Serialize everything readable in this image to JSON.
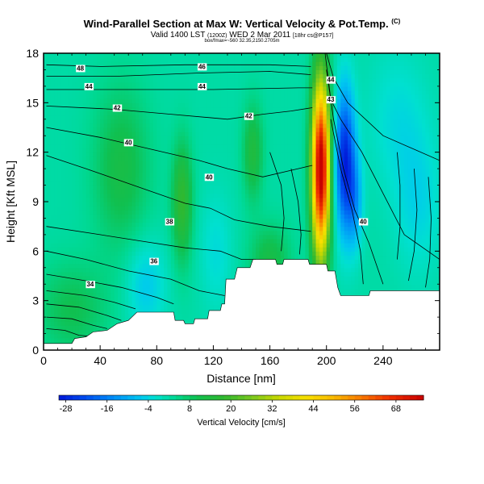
{
  "title": {
    "main": "Wind-Parallel Section at Max W: Vertical Velocity & Pot.Temp.",
    "corner_mark": "(C)",
    "valid": "Valid 1400 LST",
    "valid_small": "(1200Z)",
    "date": "WED 2 Mar 2011",
    "date_small": "[18hr cs@P157]",
    "line3": "box/fmax=~560 32.35,2150.2705m"
  },
  "chart_data": {
    "type": "heatmap",
    "xlabel": "Distance [nm]",
    "ylabel": "Height [Kft MSL]",
    "xlim": [
      0,
      280
    ],
    "ylim": [
      0,
      18
    ],
    "x_ticks": [
      0,
      40,
      80,
      120,
      160,
      200,
      240
    ],
    "y_ticks": [
      0,
      3,
      6,
      9,
      12,
      15,
      18
    ],
    "grid": false,
    "colorbar": {
      "label": "Vertical Velocity [cm/s]",
      "tick_labels": [
        "-28",
        "-16",
        "-4",
        "8",
        "20",
        "32",
        "44",
        "56",
        "68"
      ],
      "tick_values": [
        -28,
        -16,
        -4,
        8,
        20,
        32,
        44,
        56,
        68
      ],
      "min": -30,
      "max": 76,
      "stops": [
        {
          "v": -30,
          "c": "#0018d8"
        },
        {
          "v": -22,
          "c": "#0050f0"
        },
        {
          "v": -14,
          "c": "#0090f8"
        },
        {
          "v": -6,
          "c": "#00c8f0"
        },
        {
          "v": -2,
          "c": "#00e0d0"
        },
        {
          "v": 4,
          "c": "#00d890"
        },
        {
          "v": 10,
          "c": "#10c050"
        },
        {
          "v": 18,
          "c": "#30b830"
        },
        {
          "v": 26,
          "c": "#78c820"
        },
        {
          "v": 34,
          "c": "#c8d800"
        },
        {
          "v": 42,
          "c": "#f8e000"
        },
        {
          "v": 50,
          "c": "#f8b800"
        },
        {
          "v": 58,
          "c": "#f87800"
        },
        {
          "v": 66,
          "c": "#f03000"
        },
        {
          "v": 76,
          "c": "#c80000"
        }
      ]
    },
    "terrain": [
      [
        0,
        0.4
      ],
      [
        20,
        0.4
      ],
      [
        22,
        0.7
      ],
      [
        30,
        0.8
      ],
      [
        35,
        1.1
      ],
      [
        45,
        1.2
      ],
      [
        52,
        1.6
      ],
      [
        60,
        1.8
      ],
      [
        66,
        2.3
      ],
      [
        92,
        2.3
      ],
      [
        93,
        1.8
      ],
      [
        99,
        1.8
      ],
      [
        100,
        1.6
      ],
      [
        106,
        1.6
      ],
      [
        107,
        1.9
      ],
      [
        116,
        1.9
      ],
      [
        117,
        2.4
      ],
      [
        125,
        2.4
      ],
      [
        126,
        2.8
      ],
      [
        128,
        2.8
      ],
      [
        129,
        4.3
      ],
      [
        135,
        4.3
      ],
      [
        137,
        5.0
      ],
      [
        146,
        5.0
      ],
      [
        148,
        5.5
      ],
      [
        164,
        5.5
      ],
      [
        165,
        5.2
      ],
      [
        169,
        5.2
      ],
      [
        170,
        5.5
      ],
      [
        187,
        5.5
      ],
      [
        188,
        5.2
      ],
      [
        200,
        5.2
      ],
      [
        201,
        4.8
      ],
      [
        206,
        4.8
      ],
      [
        208,
        3.8
      ],
      [
        210,
        3.3
      ],
      [
        230,
        3.3
      ],
      [
        231,
        3.6
      ],
      [
        280,
        3.6
      ]
    ],
    "w_features": [
      {
        "x": 196,
        "y": 11,
        "sx": 4.5,
        "sy": 3.8,
        "amp": 78
      },
      {
        "x": 213,
        "y": 11.5,
        "sx": 5,
        "sy": 3,
        "amp": -30
      },
      {
        "x": 220,
        "y": 9,
        "sx": 4,
        "sy": 2,
        "amp": -12
      },
      {
        "x": 98,
        "y": 9,
        "sx": 5,
        "sy": 2.5,
        "amp": 16
      },
      {
        "x": 148,
        "y": 12,
        "sx": 5,
        "sy": 2,
        "amp": 12
      },
      {
        "x": 55,
        "y": 11,
        "sx": 14,
        "sy": 3.5,
        "amp": 10
      },
      {
        "x": 20,
        "y": 2.5,
        "sx": 18,
        "sy": 2,
        "amp": 8
      },
      {
        "x": 160,
        "y": 5.5,
        "sx": 10,
        "sy": 1.5,
        "amp": 10
      },
      {
        "x": 250,
        "y": 14,
        "sx": 15,
        "sy": 3,
        "amp": -5
      },
      {
        "x": 265,
        "y": 9,
        "sx": 12,
        "sy": 3,
        "amp": -6
      },
      {
        "x": 72,
        "y": 4,
        "sx": 10,
        "sy": 2,
        "amp": -8
      },
      {
        "x": 122,
        "y": 6,
        "sx": 8,
        "sy": 2.5,
        "amp": -5
      }
    ],
    "w_base": 2,
    "theta_contours": [
      {
        "value": 48,
        "label": "48",
        "points": [
          [
            2,
            17.3
          ],
          [
            40,
            17.2
          ],
          [
            100,
            17.3
          ],
          [
            160,
            17.3
          ],
          [
            189,
            17.2
          ]
        ]
      },
      {
        "value": 46,
        "label": "46",
        "points": [
          [
            2,
            16.6
          ],
          [
            50,
            16.6
          ],
          [
            110,
            16.8
          ],
          [
            160,
            16.9
          ],
          [
            189,
            16.7
          ]
        ]
      },
      {
        "value": 44,
        "label": "44",
        "points": [
          [
            2,
            15.8
          ],
          [
            60,
            15.8
          ],
          [
            120,
            15.8
          ],
          [
            180,
            15.9
          ],
          [
            190,
            15.9
          ]
        ]
      },
      {
        "value": 42,
        "label": "42",
        "points": [
          [
            2,
            14.8
          ],
          [
            50,
            14.6
          ],
          [
            90,
            14.3
          ],
          [
            130,
            14.0
          ],
          [
            155,
            14.3
          ],
          [
            175,
            14.5
          ],
          [
            190,
            14.7
          ]
        ]
      },
      {
        "value": 40,
        "label": "40",
        "points": [
          [
            2,
            13.5
          ],
          [
            40,
            12.9
          ],
          [
            80,
            12.1
          ],
          [
            110,
            11.5
          ],
          [
            130,
            11.0
          ],
          [
            155,
            10.5
          ],
          [
            180,
            11
          ],
          [
            190,
            11.2
          ]
        ]
      },
      {
        "value": 38,
        "label": "38",
        "points": [
          [
            2,
            11.8
          ],
          [
            30,
            11.0
          ],
          [
            70,
            9.8
          ],
          [
            100,
            8.9
          ],
          [
            118,
            8.6
          ],
          [
            135,
            7.9
          ],
          [
            160,
            7.5
          ],
          [
            180,
            7.3
          ],
          [
            189,
            7.2
          ]
        ]
      },
      {
        "value": 36,
        "label": "36",
        "points": [
          [
            2,
            7.5
          ],
          [
            40,
            7.0
          ],
          [
            70,
            6.6
          ],
          [
            100,
            6.2
          ],
          [
            125,
            6.0
          ],
          [
            140,
            5.5
          ],
          [
            150,
            5.5
          ]
        ]
      },
      {
        "value": 34,
        "label": "34",
        "points": [
          [
            2,
            6.0
          ],
          [
            30,
            5.5
          ],
          [
            60,
            4.8
          ],
          [
            90,
            4.3
          ],
          [
            110,
            3.6
          ],
          [
            128,
            3.3
          ]
        ]
      },
      {
        "value": 33,
        "label": "",
        "points": [
          [
            2,
            4.6
          ],
          [
            30,
            4.2
          ],
          [
            55,
            3.8
          ],
          [
            80,
            3.2
          ],
          [
            92,
            2.8
          ]
        ]
      },
      {
        "value": 32,
        "label": "",
        "points": [
          [
            2,
            3.6
          ],
          [
            30,
            3.3
          ],
          [
            50,
            2.9
          ],
          [
            65,
            2.5
          ]
        ]
      },
      {
        "value": 31,
        "label": "",
        "points": [
          [
            2,
            2.8
          ],
          [
            25,
            2.6
          ],
          [
            45,
            2.1
          ],
          [
            55,
            1.8
          ]
        ]
      },
      {
        "value": 30,
        "label": "",
        "points": [
          [
            2,
            2.0
          ],
          [
            20,
            1.9
          ],
          [
            35,
            1.5
          ],
          [
            45,
            1.3
          ]
        ]
      },
      {
        "value": 29,
        "label": "",
        "points": [
          [
            2,
            1.3
          ],
          [
            15,
            1.2
          ],
          [
            25,
            0.9
          ],
          [
            32,
            0.85
          ]
        ]
      },
      {
        "value": 44,
        "label": "44",
        "points": [
          [
            200,
            18
          ],
          [
            205,
            16.5
          ],
          [
            215,
            15.0
          ],
          [
            240,
            13.0
          ],
          [
            280,
            11.5
          ]
        ]
      },
      {
        "value": 43,
        "label": "43",
        "points": [
          [
            199,
            18
          ],
          [
            203,
            15.2
          ],
          [
            210,
            14.0
          ],
          [
            225,
            12.0
          ],
          [
            240,
            9.5
          ],
          [
            255,
            7.0
          ],
          [
            280,
            5.5
          ]
        ]
      },
      {
        "value": 42,
        "label": "",
        "points": [
          [
            200,
            17
          ],
          [
            205,
            14.0
          ],
          [
            212,
            11.0
          ],
          [
            220,
            8.5
          ],
          [
            230,
            6.5
          ],
          [
            240,
            4.0
          ]
        ]
      },
      {
        "value": 41,
        "label": "",
        "points": [
          [
            203,
            14
          ],
          [
            210,
            11
          ],
          [
            218,
            8.5
          ],
          [
            224,
            6.0
          ],
          [
            226,
            4.0
          ]
        ]
      },
      {
        "value": 40,
        "label": "40",
        "points": [
          [
            250,
            12
          ],
          [
            252,
            10
          ],
          [
            252,
            7.5
          ],
          [
            250,
            5.5
          ]
        ]
      },
      {
        "value": 39,
        "label": "",
        "points": [
          [
            262,
            11
          ],
          [
            264,
            8.5
          ],
          [
            262,
            6.0
          ],
          [
            258,
            4.2
          ]
        ]
      },
      {
        "value": 38,
        "label": "",
        "points": [
          [
            272,
            10.5
          ],
          [
            274,
            8
          ],
          [
            273,
            5.5
          ],
          [
            270,
            3.8
          ]
        ]
      },
      {
        "value": 37,
        "label": "",
        "points": [
          [
            160,
            12
          ],
          [
            168,
            10
          ],
          [
            170,
            8
          ],
          [
            168,
            6
          ]
        ]
      },
      {
        "value": 37,
        "label": "",
        "points": [
          [
            175,
            11
          ],
          [
            180,
            9
          ],
          [
            182,
            7
          ],
          [
            181,
            5.8
          ]
        ]
      }
    ],
    "contour_labels": [
      {
        "text": "48",
        "x": 26,
        "y": 17.1
      },
      {
        "text": "46",
        "x": 112,
        "y": 17.2
      },
      {
        "text": "44",
        "x": 32,
        "y": 16.0
      },
      {
        "text": "44",
        "x": 112,
        "y": 16.0
      },
      {
        "text": "42",
        "x": 52,
        "y": 14.7
      },
      {
        "text": "42",
        "x": 145,
        "y": 14.2
      },
      {
        "text": "40",
        "x": 60,
        "y": 12.6
      },
      {
        "text": "40",
        "x": 117,
        "y": 10.5
      },
      {
        "text": "38",
        "x": 89,
        "y": 7.8
      },
      {
        "text": "36",
        "x": 78,
        "y": 5.4
      },
      {
        "text": "34",
        "x": 33,
        "y": 4.0
      },
      {
        "text": "44",
        "x": 203,
        "y": 16.4
      },
      {
        "text": "43",
        "x": 203,
        "y": 15.2
      },
      {
        "text": "40",
        "x": 226,
        "y": 7.8
      }
    ]
  }
}
